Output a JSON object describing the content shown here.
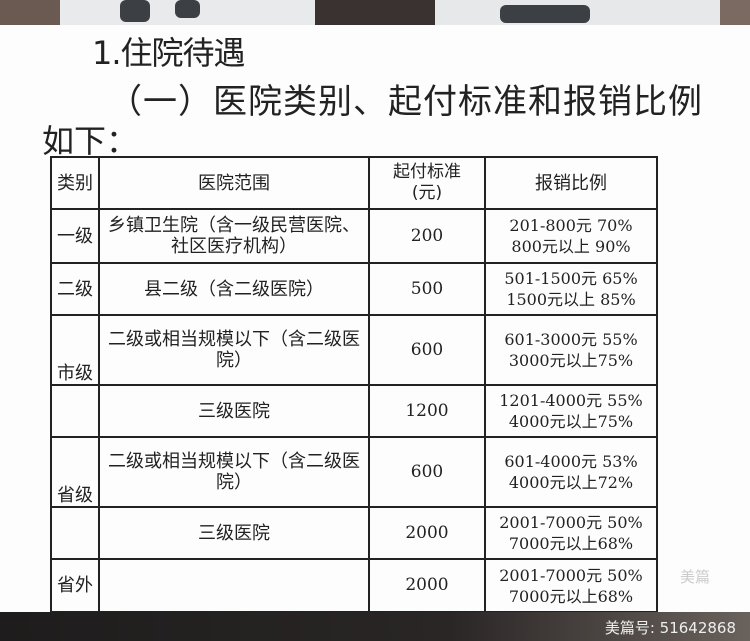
{
  "heading": "1.住院待遇",
  "subheading": "（一）医院类别、起付标准和报销比例",
  "intro": "如下：",
  "table": {
    "headers": [
      "类别",
      "医院范围",
      "起付标准\n(元)",
      "报销比例"
    ],
    "rows": [
      {
        "category": "一级",
        "scope": "乡镇卫生院（含一级民营医院、社区医疗机构）",
        "deductible": "200",
        "ratio1": "201-800元  70%",
        "ratio2": "800元以上  90%"
      },
      {
        "category": "二级",
        "scope": "县二级（含二级医院）",
        "deductible": "500",
        "ratio1": "501-1500元  65%",
        "ratio2": "1500元以上  85%"
      },
      {
        "category": "市级",
        "scope": "二级或相当规模以下（含二级医院）",
        "deductible": "600",
        "ratio1": "601-3000元  55%",
        "ratio2": "3000元以上75%"
      },
      {
        "category": "",
        "scope": "三级医院",
        "deductible": "1200",
        "ratio1": "1201-4000元  55%",
        "ratio2": "4000元以上75%"
      },
      {
        "category": "省级",
        "scope": "二级或相当规模以下（含二级医院）",
        "deductible": "600",
        "ratio1": "601-4000元 53%",
        "ratio2": "4000元以上72%"
      },
      {
        "category": "",
        "scope": "三级医院",
        "deductible": "2000",
        "ratio1": "2001-7000元 50%",
        "ratio2": "7000元以上68%"
      },
      {
        "category": "省外",
        "scope": "",
        "deductible": "2000",
        "ratio1": "2001-7000元 50%",
        "ratio2": "7000元以上68%"
      }
    ]
  },
  "watermark": {
    "logo": "美篇",
    "id": "美篇号: 51642868"
  }
}
